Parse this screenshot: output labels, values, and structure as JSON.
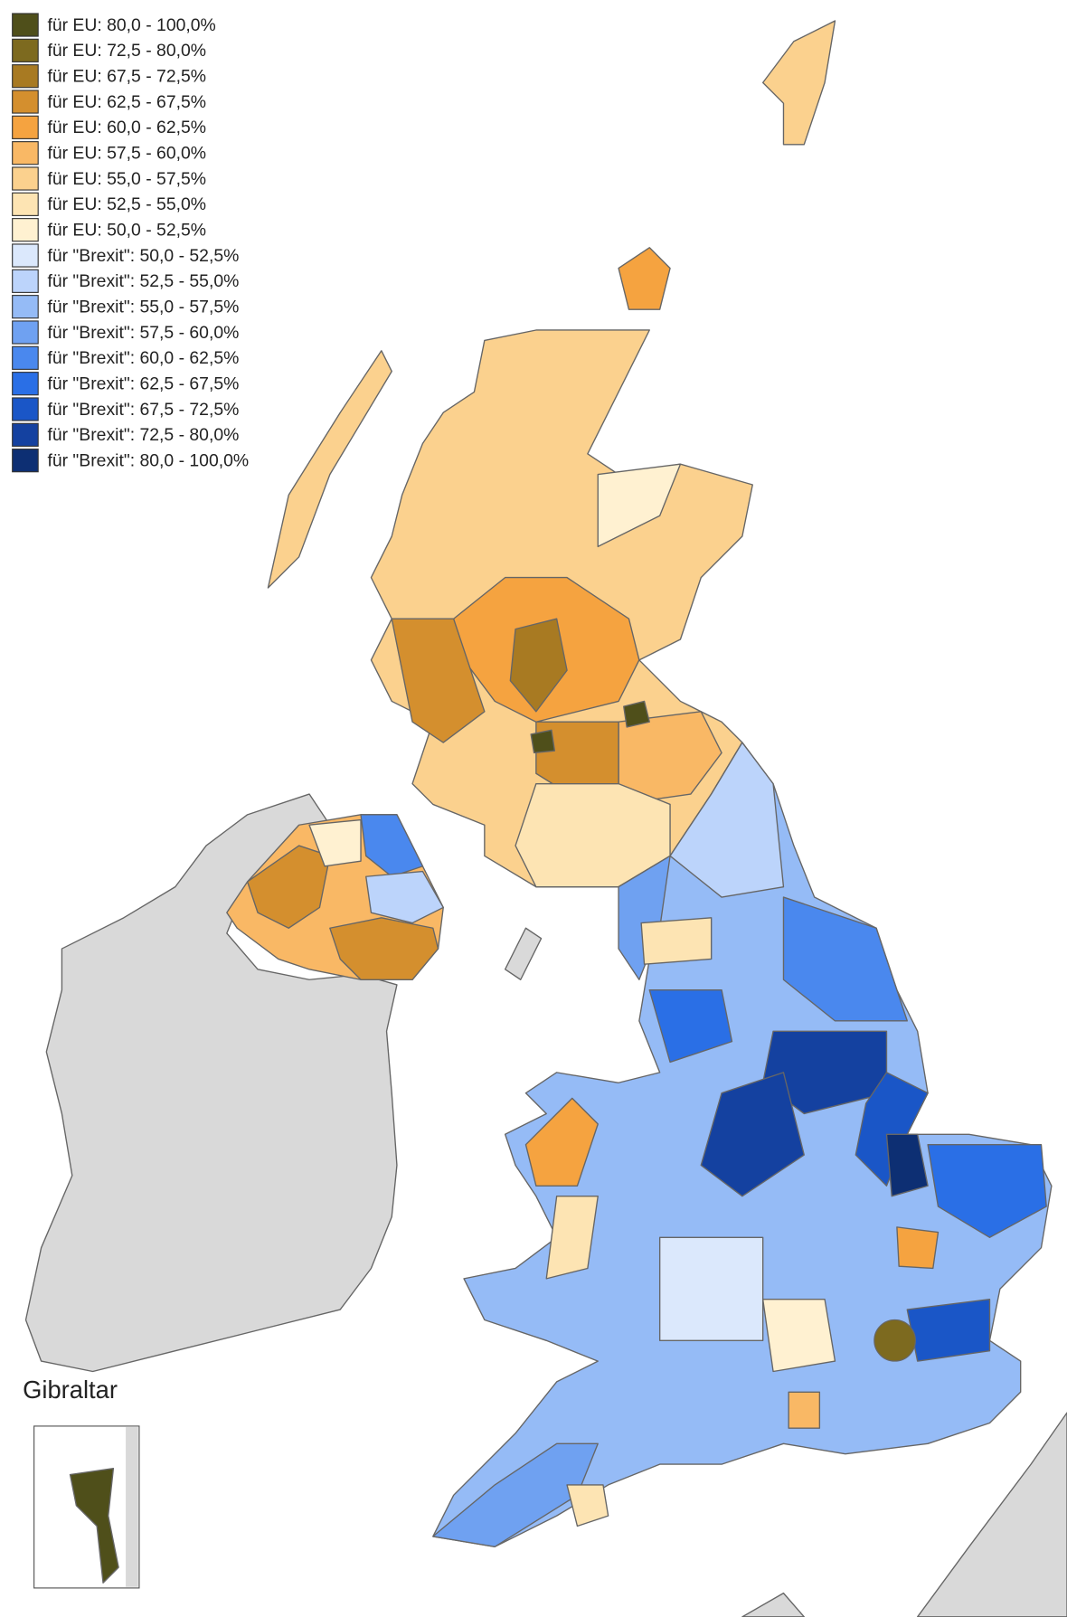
{
  "legend": {
    "items": [
      {
        "label": "für EU: 80,0 - 100,0%",
        "color": "#4f4f1a"
      },
      {
        "label": "für EU: 72,5 - 80,0%",
        "color": "#7d6a1f"
      },
      {
        "label": "für EU: 67,5 - 72,5%",
        "color": "#a87a22"
      },
      {
        "label": "für EU: 62,5 - 67,5%",
        "color": "#d48f2e"
      },
      {
        "label": "für EU: 60,0 - 62,5%",
        "color": "#f5a340"
      },
      {
        "label": "für EU: 57,5 - 60,0%",
        "color": "#f9b865"
      },
      {
        "label": "für EU: 55,0 - 57,5%",
        "color": "#fbd18e"
      },
      {
        "label": "für EU: 52,5 - 55,0%",
        "color": "#fde4b3"
      },
      {
        "label": "für EU: 50,0 - 52,5%",
        "color": "#fff1d1"
      },
      {
        "label": "für \"Brexit\": 50,0 - 52,5%",
        "color": "#dbe8fc"
      },
      {
        "label": "für \"Brexit\": 52,5 - 55,0%",
        "color": "#bcd4fb"
      },
      {
        "label": "für \"Brexit\": 55,0 - 57,5%",
        "color": "#95bbf6"
      },
      {
        "label": "für \"Brexit\": 57,5 - 60,0%",
        "color": "#6fa1f1"
      },
      {
        "label": "für \"Brexit\": 60,0 - 62,5%",
        "color": "#4a88ee"
      },
      {
        "label": "für \"Brexit\": 62,5 - 67,5%",
        "color": "#2a6fe6"
      },
      {
        "label": "für \"Brexit\": 67,5 - 72,5%",
        "color": "#1a56c7"
      },
      {
        "label": "für \"Brexit\": 72,5 - 80,0%",
        "color": "#1441a0"
      },
      {
        "label": "für \"Brexit\": 80,0 - 100,0%",
        "color": "#0d2f73"
      }
    ]
  },
  "inset": {
    "title": "Gibraltar"
  }
}
